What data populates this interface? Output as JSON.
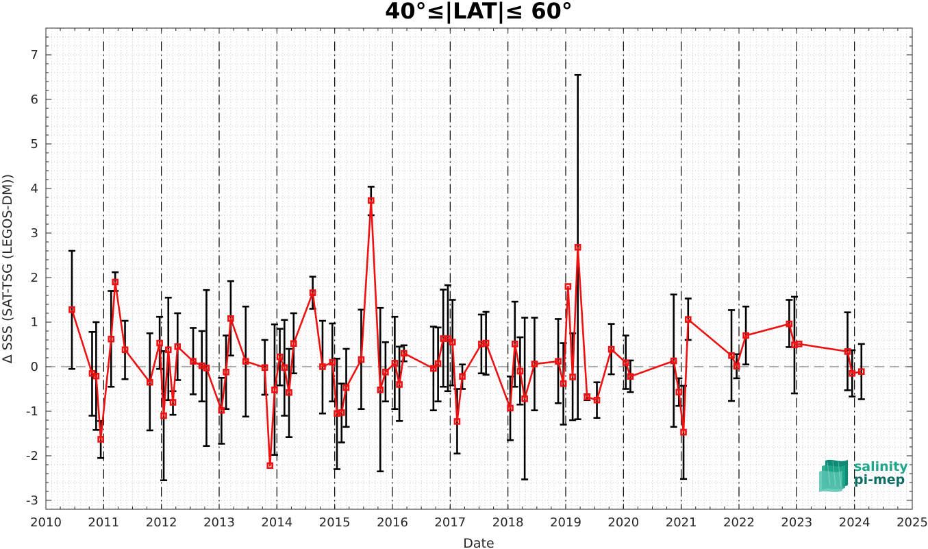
{
  "chart_data": {
    "type": "line",
    "title": "40°≤|LAT|≤ 60°",
    "xlabel": "Date",
    "ylabel": "Δ SSS (SAT-TSG (LEGOS-DM))",
    "xlim": [
      2010.0,
      2025.0
    ],
    "ylim": [
      -3.2,
      7.6
    ],
    "x_ticks": [
      "2010",
      "2011",
      "2012",
      "2013",
      "2014",
      "2015",
      "2016",
      "2017",
      "2018",
      "2019",
      "2020",
      "2021",
      "2022",
      "2023",
      "2024",
      "2025"
    ],
    "y_ticks": [
      "-3",
      "-2",
      "-1",
      "0",
      "1",
      "2",
      "3",
      "4",
      "5",
      "6",
      "7"
    ],
    "grid": "dotted minor grid",
    "zero_line": 0,
    "year_marker_lines": [
      2011,
      2012,
      2013,
      2014,
      2015,
      2016,
      2017,
      2018,
      2019,
      2020,
      2021,
      2022,
      2023,
      2024
    ],
    "colors": {
      "series": "#ee1111",
      "error_bars": "#000000",
      "grid": "#c8c8c8"
    },
    "series": [
      {
        "marker": "square",
        "points": [
          {
            "x": 2010.45,
            "y": 1.28,
            "lo": -0.05,
            "hi": 2.6
          },
          {
            "x": 2010.8,
            "y": -0.15,
            "lo": -1.1,
            "hi": 0.78
          },
          {
            "x": 2010.87,
            "y": -0.21,
            "lo": -1.42,
            "hi": 1.0
          },
          {
            "x": 2010.95,
            "y": -1.63,
            "lo": -2.05,
            "hi": -1.22
          },
          {
            "x": 2011.13,
            "y": 0.62,
            "lo": -0.45,
            "hi": 1.7
          },
          {
            "x": 2011.2,
            "y": 1.9,
            "lo": 1.7,
            "hi": 2.12
          },
          {
            "x": 2011.37,
            "y": 0.38,
            "lo": -0.28,
            "hi": 1.03
          },
          {
            "x": 2011.8,
            "y": -0.35,
            "lo": -1.43,
            "hi": 0.75
          },
          {
            "x": 2011.97,
            "y": 0.53,
            "lo": -0.05,
            "hi": 1.12
          },
          {
            "x": 2012.04,
            "y": -1.1,
            "lo": -2.55,
            "hi": 0.35
          },
          {
            "x": 2012.12,
            "y": 0.38,
            "lo": -0.75,
            "hi": 1.55
          },
          {
            "x": 2012.2,
            "y": -0.8,
            "lo": -1.08,
            "hi": -0.55
          },
          {
            "x": 2012.28,
            "y": 0.45,
            "lo": -0.3,
            "hi": 1.2
          },
          {
            "x": 2012.55,
            "y": 0.12,
            "lo": -0.62,
            "hi": 0.87
          },
          {
            "x": 2012.7,
            "y": 0.02,
            "lo": -0.78,
            "hi": 0.8
          },
          {
            "x": 2012.78,
            "y": -0.03,
            "lo": -1.78,
            "hi": 1.72
          },
          {
            "x": 2013.04,
            "y": -0.98,
            "lo": -1.73,
            "hi": -0.25
          },
          {
            "x": 2013.12,
            "y": -0.12,
            "lo": -0.95,
            "hi": 0.7
          },
          {
            "x": 2013.2,
            "y": 1.08,
            "lo": 0.25,
            "hi": 1.92
          },
          {
            "x": 2013.46,
            "y": 0.12,
            "lo": -1.12,
            "hi": 1.35
          },
          {
            "x": 2013.79,
            "y": -0.02,
            "lo": -0.63,
            "hi": 0.6
          },
          {
            "x": 2013.88,
            "y": -2.22,
            "lo": -2.22,
            "hi": -2.22
          },
          {
            "x": 2013.96,
            "y": -0.52,
            "lo": -1.98,
            "hi": 0.95
          },
          {
            "x": 2014.05,
            "y": 0.22,
            "lo": -0.42,
            "hi": 0.85
          },
          {
            "x": 2014.13,
            "y": -0.02,
            "lo": -1.1,
            "hi": 1.05
          },
          {
            "x": 2014.21,
            "y": -0.58,
            "lo": -1.58,
            "hi": 0.4
          },
          {
            "x": 2014.29,
            "y": 0.52,
            "lo": -0.15,
            "hi": 1.2
          },
          {
            "x": 2014.62,
            "y": 1.66,
            "lo": 1.3,
            "hi": 2.02
          },
          {
            "x": 2014.79,
            "y": 0.0,
            "lo": -1.05,
            "hi": 1.03
          },
          {
            "x": 2014.96,
            "y": 0.1,
            "lo": -0.78,
            "hi": 0.97
          },
          {
            "x": 2015.04,
            "y": -1.05,
            "lo": -2.3,
            "hi": 0.18
          },
          {
            "x": 2015.12,
            "y": -1.03,
            "lo": -1.7,
            "hi": -0.38
          },
          {
            "x": 2015.2,
            "y": -0.47,
            "lo": -1.35,
            "hi": 0.4
          },
          {
            "x": 2015.46,
            "y": 0.16,
            "lo": -0.95,
            "hi": 1.28
          },
          {
            "x": 2015.63,
            "y": 3.73,
            "lo": 3.4,
            "hi": 4.04
          },
          {
            "x": 2015.79,
            "y": -0.52,
            "lo": -2.35,
            "hi": 1.32
          },
          {
            "x": 2015.88,
            "y": -0.12,
            "lo": -0.78,
            "hi": 0.55
          },
          {
            "x": 2016.04,
            "y": 0.08,
            "lo": -0.95,
            "hi": 1.12
          },
          {
            "x": 2016.12,
            "y": -0.4,
            "lo": -1.22,
            "hi": 0.45
          },
          {
            "x": 2016.2,
            "y": 0.3,
            "lo": 0.12,
            "hi": 0.48
          },
          {
            "x": 2016.71,
            "y": -0.04,
            "lo": -0.98,
            "hi": 0.9
          },
          {
            "x": 2016.79,
            "y": 0.07,
            "lo": -0.78,
            "hi": 0.88
          },
          {
            "x": 2016.88,
            "y": 0.63,
            "lo": -0.45,
            "hi": 1.73
          },
          {
            "x": 2016.96,
            "y": 0.63,
            "lo": -0.55,
            "hi": 1.83
          },
          {
            "x": 2017.04,
            "y": 0.55,
            "lo": -0.42,
            "hi": 1.5
          },
          {
            "x": 2017.12,
            "y": -1.23,
            "lo": -1.95,
            "hi": -0.5
          },
          {
            "x": 2017.21,
            "y": -0.22,
            "lo": -0.5,
            "hi": 0.05
          },
          {
            "x": 2017.54,
            "y": 0.51,
            "lo": -0.15,
            "hi": 1.17
          },
          {
            "x": 2017.62,
            "y": 0.53,
            "lo": -0.18,
            "hi": 1.23
          },
          {
            "x": 2018.04,
            "y": -0.93,
            "lo": -1.65,
            "hi": -0.22
          },
          {
            "x": 2018.12,
            "y": 0.51,
            "lo": -0.45,
            "hi": 1.46
          },
          {
            "x": 2018.21,
            "y": -0.1,
            "lo": -0.85,
            "hi": 0.66
          },
          {
            "x": 2018.29,
            "y": -0.72,
            "lo": -2.53,
            "hi": 1.1
          },
          {
            "x": 2018.46,
            "y": 0.06,
            "lo": -0.98,
            "hi": 1.1
          },
          {
            "x": 2018.87,
            "y": 0.12,
            "lo": -0.82,
            "hi": 1.07
          },
          {
            "x": 2018.96,
            "y": -0.38,
            "lo": -1.3,
            "hi": 0.53
          },
          {
            "x": 2019.04,
            "y": 1.8,
            "lo": 1.8,
            "hi": 1.8
          },
          {
            "x": 2019.12,
            "y": -0.23,
            "lo": -1.2,
            "hi": 0.75
          },
          {
            "x": 2019.21,
            "y": 2.68,
            "lo": -1.18,
            "hi": 6.55
          },
          {
            "x": 2019.37,
            "y": -0.68,
            "lo": -0.75,
            "hi": -0.62
          },
          {
            "x": 2019.54,
            "y": -0.75,
            "lo": -1.15,
            "hi": -0.35
          },
          {
            "x": 2019.79,
            "y": 0.39,
            "lo": -0.17,
            "hi": 0.96
          },
          {
            "x": 2020.04,
            "y": 0.09,
            "lo": -0.5,
            "hi": 0.7
          },
          {
            "x": 2020.12,
            "y": -0.22,
            "lo": -0.57,
            "hi": 0.14
          },
          {
            "x": 2020.87,
            "y": 0.13,
            "lo": -1.35,
            "hi": 1.62
          },
          {
            "x": 2020.96,
            "y": -0.57,
            "lo": -0.88,
            "hi": -0.26
          },
          {
            "x": 2021.04,
            "y": -1.47,
            "lo": -2.52,
            "hi": -0.43
          },
          {
            "x": 2021.12,
            "y": 1.06,
            "lo": 0.6,
            "hi": 1.53
          },
          {
            "x": 2021.87,
            "y": 0.25,
            "lo": -0.77,
            "hi": 1.27
          },
          {
            "x": 2021.96,
            "y": 0.01,
            "lo": -0.26,
            "hi": 0.28
          },
          {
            "x": 2022.12,
            "y": 0.7,
            "lo": 0.05,
            "hi": 1.35
          },
          {
            "x": 2022.87,
            "y": 0.96,
            "lo": 0.44,
            "hi": 1.5
          },
          {
            "x": 2022.96,
            "y": 0.49,
            "lo": -0.6,
            "hi": 1.57
          },
          {
            "x": 2023.04,
            "y": 0.51,
            "lo": 0.51,
            "hi": 0.51
          },
          {
            "x": 2023.88,
            "y": 0.34,
            "lo": -0.53,
            "hi": 1.22
          },
          {
            "x": 2023.96,
            "y": -0.15,
            "lo": -0.67,
            "hi": 0.37
          },
          {
            "x": 2024.12,
            "y": -0.11,
            "lo": -0.73,
            "hi": 0.51
          }
        ]
      }
    ]
  },
  "logo": {
    "line1": "salinity",
    "line2": "pi-mep",
    "color1": "#1fa58a",
    "color2": "#0e6d63"
  }
}
